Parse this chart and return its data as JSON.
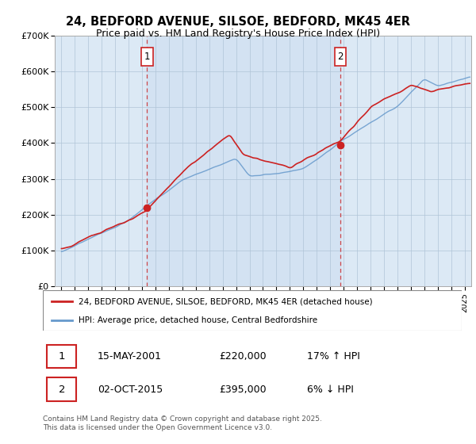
{
  "title_line1": "24, BEDFORD AVENUE, SILSOE, BEDFORD, MK45 4ER",
  "title_line2": "Price paid vs. HM Land Registry's House Price Index (HPI)",
  "background_color": "#ffffff",
  "plot_background": "#dce9f5",
  "grid_color": "#b0c4d8",
  "sale1_date_label": "15-MAY-2001",
  "sale1_price": 220000,
  "sale1_hpi_pct": "17% ↑ HPI",
  "sale2_date_label": "02-OCT-2015",
  "sale2_price": 395000,
  "sale2_hpi_pct": "6% ↓ HPI",
  "legend_label1": "24, BEDFORD AVENUE, SILSOE, BEDFORD, MK45 4ER (detached house)",
  "legend_label2": "HPI: Average price, detached house, Central Bedfordshire",
  "footer": "Contains HM Land Registry data © Crown copyright and database right 2025.\nThis data is licensed under the Open Government Licence v3.0.",
  "sale1_x": 2001.37,
  "sale2_x": 2015.75,
  "hpi_color": "#6699cc",
  "price_color": "#cc2222",
  "dashed_color": "#cc2222",
  "ylim": [
    0,
    700000
  ],
  "xlim_start": 1994.5,
  "xlim_end": 2025.5
}
